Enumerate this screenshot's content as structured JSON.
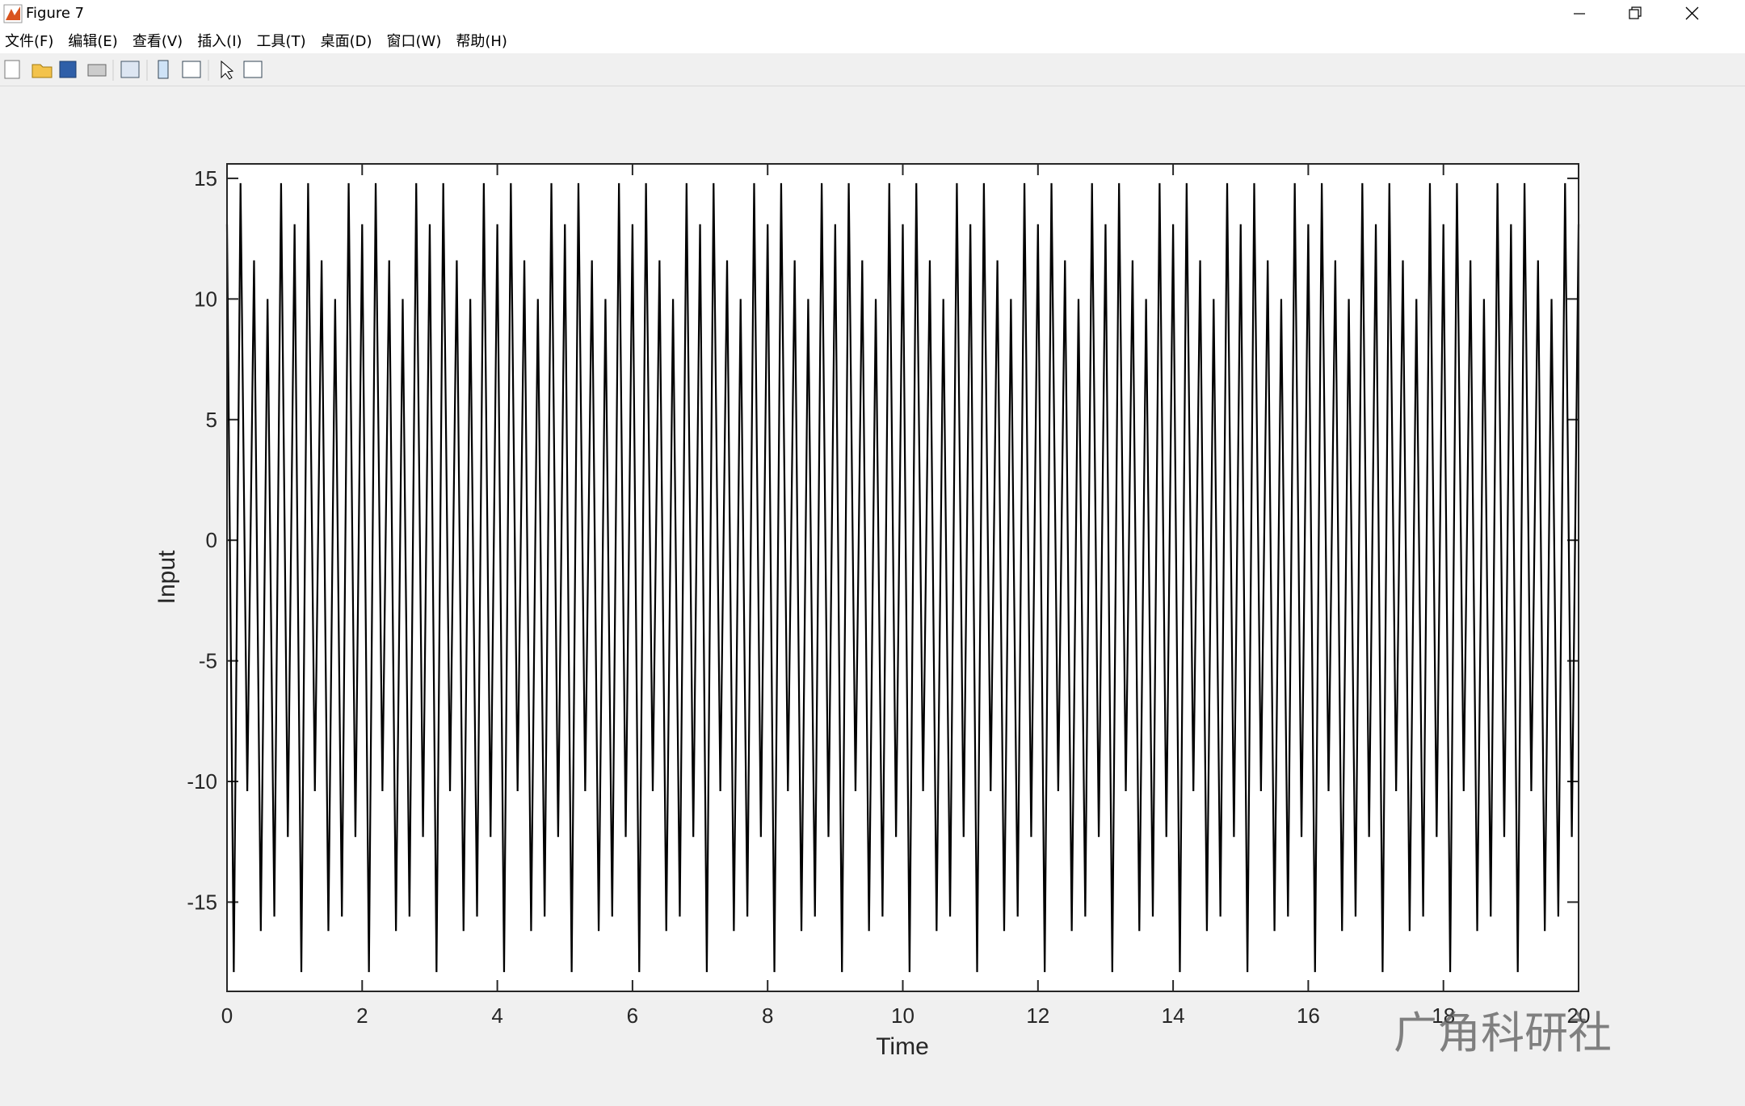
{
  "window": {
    "title": "Figure 7"
  },
  "menu": [
    "文件(F)",
    "编辑(E)",
    "查看(V)",
    "插入(I)",
    "工具(T)",
    "桌面(D)",
    "窗口(W)",
    "帮助(H)"
  ],
  "watermark": "广角科研社",
  "chart_data": {
    "type": "line",
    "xlabel": "Time",
    "ylabel": "Input",
    "color": "#000000",
    "xlim": [
      0,
      20
    ],
    "xticks": [
      0,
      2,
      4,
      6,
      8,
      10,
      12,
      14,
      16,
      18,
      20
    ],
    "ylim": [
      -18.7,
      15.6
    ],
    "yticks": [
      -15,
      -10,
      -5,
      0,
      5,
      10,
      15
    ],
    "box": true,
    "x": [
      0,
      0.1,
      0.2,
      0.3,
      0.4,
      0.5,
      0.6,
      0.7,
      0.8,
      0.9,
      1,
      1.1,
      1.2,
      1.3,
      1.4,
      1.5,
      1.6,
      1.7,
      1.8,
      1.9,
      2,
      2.1,
      2.2,
      2.3,
      2.4,
      2.5,
      2.6,
      2.7,
      2.8,
      2.9,
      3,
      3.1,
      3.2,
      3.3,
      3.4,
      3.5,
      3.6,
      3.7,
      3.8,
      3.9,
      4,
      4.1,
      4.2,
      4.3,
      4.4,
      4.5,
      4.6,
      4.7,
      4.8,
      4.9,
      5,
      5.1,
      5.2,
      5.3,
      5.4,
      5.5,
      5.6,
      5.7,
      5.8,
      5.9,
      6,
      6.1,
      6.2,
      6.3,
      6.4,
      6.5,
      6.6,
      6.7,
      6.8,
      6.9,
      7,
      7.1,
      7.2,
      7.3,
      7.4,
      7.5,
      7.6,
      7.7,
      7.8,
      7.9,
      8,
      8.1,
      8.2,
      8.3,
      8.4,
      8.5,
      8.6,
      8.7,
      8.8,
      8.9,
      9,
      9.1,
      9.2,
      9.3,
      9.4,
      9.5,
      9.6,
      9.7,
      9.8,
      9.9,
      10,
      10.1,
      10.2,
      10.3,
      10.4,
      10.5,
      10.6,
      10.7,
      10.8,
      10.9,
      11,
      11.1,
      11.2,
      11.3,
      11.4,
      11.5,
      11.6,
      11.7,
      11.8,
      11.9,
      12,
      12.1,
      12.2,
      12.3,
      12.4,
      12.5,
      12.6,
      12.7,
      12.8,
      12.9,
      13,
      13.1,
      13.2,
      13.3,
      13.4,
      13.5,
      13.6,
      13.7,
      13.8,
      13.9,
      14,
      14.1,
      14.2,
      14.3,
      14.4,
      14.5,
      14.6,
      14.7,
      14.8,
      14.9,
      15,
      15.1,
      15.2,
      15.3,
      15.4,
      15.5,
      15.6,
      15.7,
      15.8,
      15.9,
      16,
      16.1,
      16.2,
      16.3,
      16.4,
      16.5,
      16.6,
      16.7,
      16.8,
      16.9,
      17,
      17.1,
      17.2,
      17.3,
      17.4,
      17.5,
      17.6,
      17.7,
      17.8,
      17.9,
      18,
      18.1,
      18.2,
      18.3,
      18.4,
      18.5,
      18.6,
      18.7,
      18.8,
      18.9,
      19,
      19.1,
      19.2,
      19.3,
      19.4,
      19.5,
      19.6,
      19.7,
      19.8,
      19.9,
      20
    ],
    "values": [
      13.1,
      -17.9,
      14.8,
      -10.4,
      11.6,
      -16.2,
      10,
      -15.6,
      14.8,
      -12.3,
      13.1,
      -17.9,
      14.8,
      -10.4,
      11.6,
      -16.2,
      10,
      -15.6,
      14.8,
      -12.3,
      13.1,
      -17.9,
      14.8,
      -10.4,
      11.6,
      -16.2,
      10,
      -15.6,
      14.8,
      -12.3,
      13.1,
      -17.9,
      14.8,
      -10.4,
      11.6,
      -16.2,
      10,
      -15.6,
      14.8,
      -12.3,
      13.1,
      -17.9,
      14.8,
      -10.4,
      11.6,
      -16.2,
      10,
      -15.6,
      14.8,
      -12.3,
      13.1,
      -17.9,
      14.8,
      -10.4,
      11.6,
      -16.2,
      10,
      -15.6,
      14.8,
      -12.3,
      13.1,
      -17.9,
      14.8,
      -10.4,
      11.6,
      -16.2,
      10,
      -15.6,
      14.8,
      -12.3,
      13.1,
      -17.9,
      14.8,
      -10.4,
      11.6,
      -16.2,
      10,
      -15.6,
      14.8,
      -12.3,
      13.1,
      -17.9,
      14.8,
      -10.4,
      11.6,
      -16.2,
      10,
      -15.6,
      14.8,
      -12.3,
      13.1,
      -17.9,
      14.8,
      -10.4,
      11.6,
      -16.2,
      10,
      -15.6,
      14.8,
      -12.3,
      13.1,
      -17.9,
      14.8,
      -10.4,
      11.6,
      -16.2,
      10,
      -15.6,
      14.8,
      -12.3,
      13.1,
      -17.9,
      14.8,
      -10.4,
      11.6,
      -16.2,
      10,
      -15.6,
      14.8,
      -12.3,
      13.1,
      -17.9,
      14.8,
      -10.4,
      11.6,
      -16.2,
      10,
      -15.6,
      14.8,
      -12.3,
      13.1,
      -17.9,
      14.8,
      -10.4,
      11.6,
      -16.2,
      10,
      -15.6,
      14.8,
      -12.3,
      13.1,
      -17.9,
      14.8,
      -10.4,
      11.6,
      -16.2,
      10,
      -15.6,
      14.8,
      -12.3,
      13.1,
      -17.9,
      14.8,
      -10.4,
      11.6,
      -16.2,
      10,
      -15.6,
      14.8,
      -12.3,
      13.1,
      -17.9,
      14.8,
      -10.4,
      11.6,
      -16.2,
      10,
      -15.6,
      14.8,
      -12.3,
      13.1,
      -17.9,
      14.8,
      -10.4,
      11.6,
      -16.2,
      10,
      -15.6,
      14.8,
      -12.3,
      13.1,
      -17.9,
      14.8,
      -10.4,
      11.6,
      -16.2,
      10,
      -15.6,
      14.8,
      -12.3,
      13.1,
      -17.9,
      14.8,
      -10.4,
      11.6,
      -16.2,
      10,
      -15.6,
      14.8,
      -12.3,
      13.1
    ]
  }
}
